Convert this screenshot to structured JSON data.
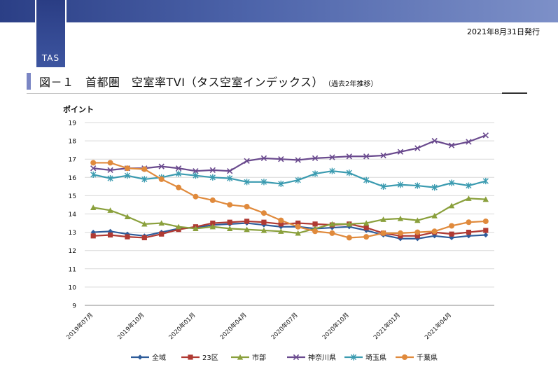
{
  "header": {
    "tab_label": "TAS",
    "issue_date": "2021年8月31日発行"
  },
  "figure": {
    "title": "図－１　首都圏　空室率TVI（タス空室インデックス）",
    "subtitle": "（過去2年推移）"
  },
  "chart_data": {
    "type": "line",
    "ylabel": "ポイント",
    "ylim": [
      9,
      19
    ],
    "yticks": [
      9,
      10,
      11,
      12,
      13,
      14,
      15,
      16,
      17,
      18,
      19
    ],
    "grid": true,
    "legend_position": "bottom",
    "x": [
      "2019年07月",
      "2019年08月",
      "2019年09月",
      "2019年10月",
      "2019年11月",
      "2019年12月",
      "2020年01月",
      "2020年02月",
      "2020年03月",
      "2020年04月",
      "2020年05月",
      "2020年06月",
      "2020年07月",
      "2020年08月",
      "2020年09月",
      "2020年10月",
      "2020年11月",
      "2020年12月",
      "2021年01月",
      "2021年02月",
      "2021年03月",
      "2021年04月",
      "2021年05月",
      "2021年06月"
    ],
    "x_tick_labels": [
      "2019年07月",
      "",
      "",
      "2019年10月",
      "",
      "",
      "2020年01月",
      "",
      "",
      "2020年04月",
      "",
      "",
      "2020年07月",
      "",
      "",
      "2020年10月",
      "",
      "",
      "2021年01月",
      "",
      "",
      "2021年04月",
      "",
      ""
    ],
    "series": [
      {
        "name": "全域",
        "color": "#2e5c9a",
        "marker": "diamond",
        "values": [
          13.0,
          13.05,
          12.9,
          12.8,
          13.0,
          13.2,
          13.25,
          13.4,
          13.45,
          13.5,
          13.4,
          13.3,
          13.3,
          13.2,
          13.25,
          13.3,
          13.1,
          12.85,
          12.65,
          12.65,
          12.8,
          12.7,
          12.8,
          12.85
        ]
      },
      {
        "name": "23区",
        "color": "#b03a33",
        "marker": "square",
        "values": [
          12.8,
          12.85,
          12.75,
          12.7,
          12.9,
          13.15,
          13.3,
          13.5,
          13.55,
          13.6,
          13.55,
          13.45,
          13.5,
          13.45,
          13.4,
          13.45,
          13.25,
          12.95,
          12.8,
          12.8,
          13.0,
          12.9,
          13.0,
          13.1
        ]
      },
      {
        "name": "市部",
        "color": "#8aa03c",
        "marker": "triangle",
        "values": [
          14.35,
          14.2,
          13.85,
          13.45,
          13.5,
          13.3,
          13.2,
          13.3,
          13.2,
          13.15,
          13.1,
          13.05,
          12.95,
          13.2,
          13.45,
          13.45,
          13.5,
          13.7,
          13.75,
          13.65,
          13.9,
          14.45,
          14.85,
          14.8
        ]
      },
      {
        "name": "神奈川県",
        "color": "#6a4a8e",
        "marker": "x",
        "values": [
          16.5,
          16.4,
          16.5,
          16.5,
          16.6,
          16.5,
          16.35,
          16.4,
          16.35,
          16.9,
          17.05,
          17.0,
          16.95,
          17.05,
          17.1,
          17.15,
          17.15,
          17.2,
          17.4,
          17.6,
          18.0,
          17.75,
          17.95,
          18.3
        ]
      },
      {
        "name": "埼玉県",
        "color": "#3b9bb0",
        "marker": "asterisk",
        "values": [
          16.15,
          15.95,
          16.1,
          15.9,
          16.0,
          16.2,
          16.1,
          16.0,
          15.95,
          15.75,
          15.75,
          15.65,
          15.85,
          16.2,
          16.35,
          16.25,
          15.85,
          15.5,
          15.6,
          15.55,
          15.45,
          15.7,
          15.55,
          15.8
        ]
      },
      {
        "name": "千葉県",
        "color": "#e08a3c",
        "marker": "circle",
        "values": [
          16.8,
          16.8,
          16.5,
          16.45,
          15.9,
          15.45,
          14.95,
          14.75,
          14.5,
          14.4,
          14.05,
          13.65,
          13.3,
          13.05,
          12.95,
          12.7,
          12.75,
          12.95,
          12.95,
          13.0,
          13.05,
          13.35,
          13.55,
          13.6
        ]
      }
    ]
  }
}
